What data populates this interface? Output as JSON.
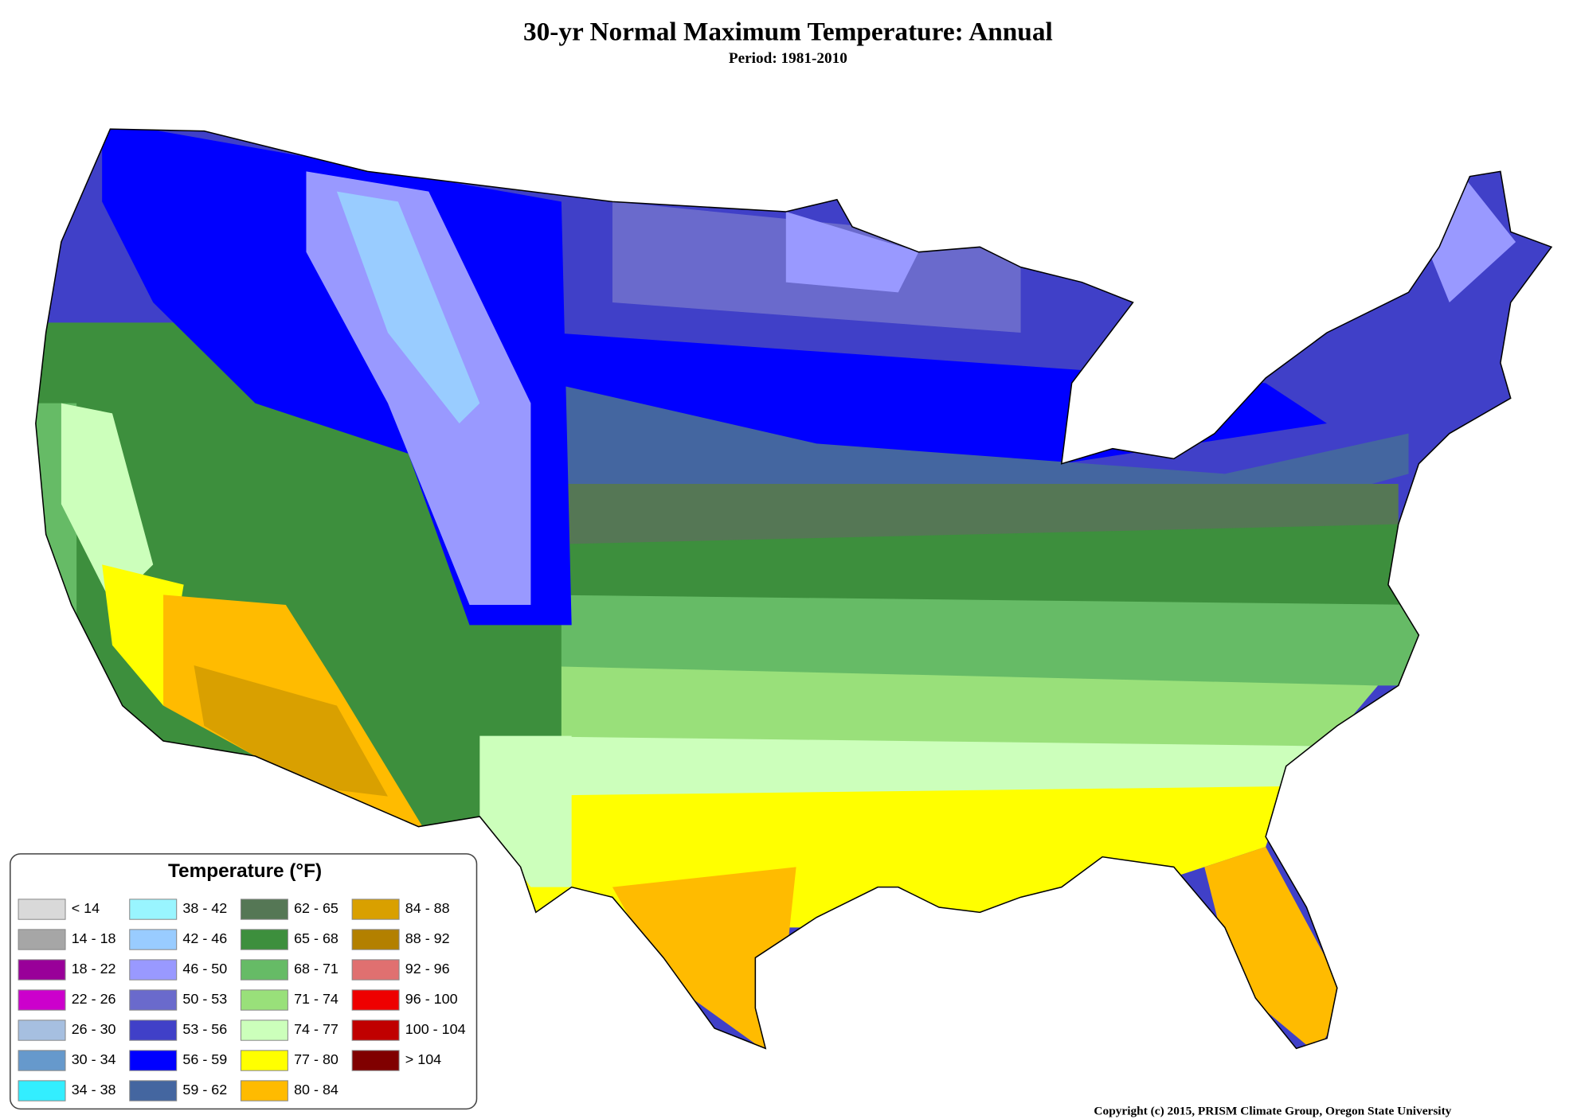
{
  "title": "30-yr Normal Maximum Temperature: Annual",
  "subtitle": "Period: 1981-2010",
  "legend": {
    "title": "Temperature (°F)",
    "items": [
      {
        "label": "< 14",
        "color": "#d9d9d9"
      },
      {
        "label": "14 - 18",
        "color": "#a6a6a6"
      },
      {
        "label": "18 - 22",
        "color": "#990099"
      },
      {
        "label": "22 - 26",
        "color": "#cc00cc"
      },
      {
        "label": "26 - 30",
        "color": "#a6bfe0"
      },
      {
        "label": "30 - 34",
        "color": "#6699cc"
      },
      {
        "label": "34 - 38",
        "color": "#33eeff"
      },
      {
        "label": "38 - 42",
        "color": "#99f5ff"
      },
      {
        "label": "42 - 46",
        "color": "#99ccff"
      },
      {
        "label": "46 - 50",
        "color": "#9999ff"
      },
      {
        "label": "50 - 53",
        "color": "#6a6acc"
      },
      {
        "label": "53 - 56",
        "color": "#4040c8"
      },
      {
        "label": "56 - 59",
        "color": "#0000ff"
      },
      {
        "label": "59 - 62",
        "color": "#4466a0"
      },
      {
        "label": "62 - 65",
        "color": "#557755"
      },
      {
        "label": "65 - 68",
        "color": "#3d8f3d"
      },
      {
        "label": "68 - 71",
        "color": "#66bb66"
      },
      {
        "label": "71 - 74",
        "color": "#99e07a"
      },
      {
        "label": "74 - 77",
        "color": "#ccffbb"
      },
      {
        "label": "77 - 80",
        "color": "#ffff00"
      },
      {
        "label": "80 - 84",
        "color": "#ffbb00"
      },
      {
        "label": "84 - 88",
        "color": "#d9a000"
      },
      {
        "label": "88 - 92",
        "color": "#b38000"
      },
      {
        "label": "92 - 96",
        "color": "#e07070"
      },
      {
        "label": "96 - 100",
        "color": "#ee0000"
      },
      {
        "label": "100 - 104",
        "color": "#c00000"
      },
      {
        "label": "> 104",
        "color": "#800000"
      }
    ]
  },
  "copyright": "Copyright (c) 2015, PRISM Climate Group, Oregon State University"
}
